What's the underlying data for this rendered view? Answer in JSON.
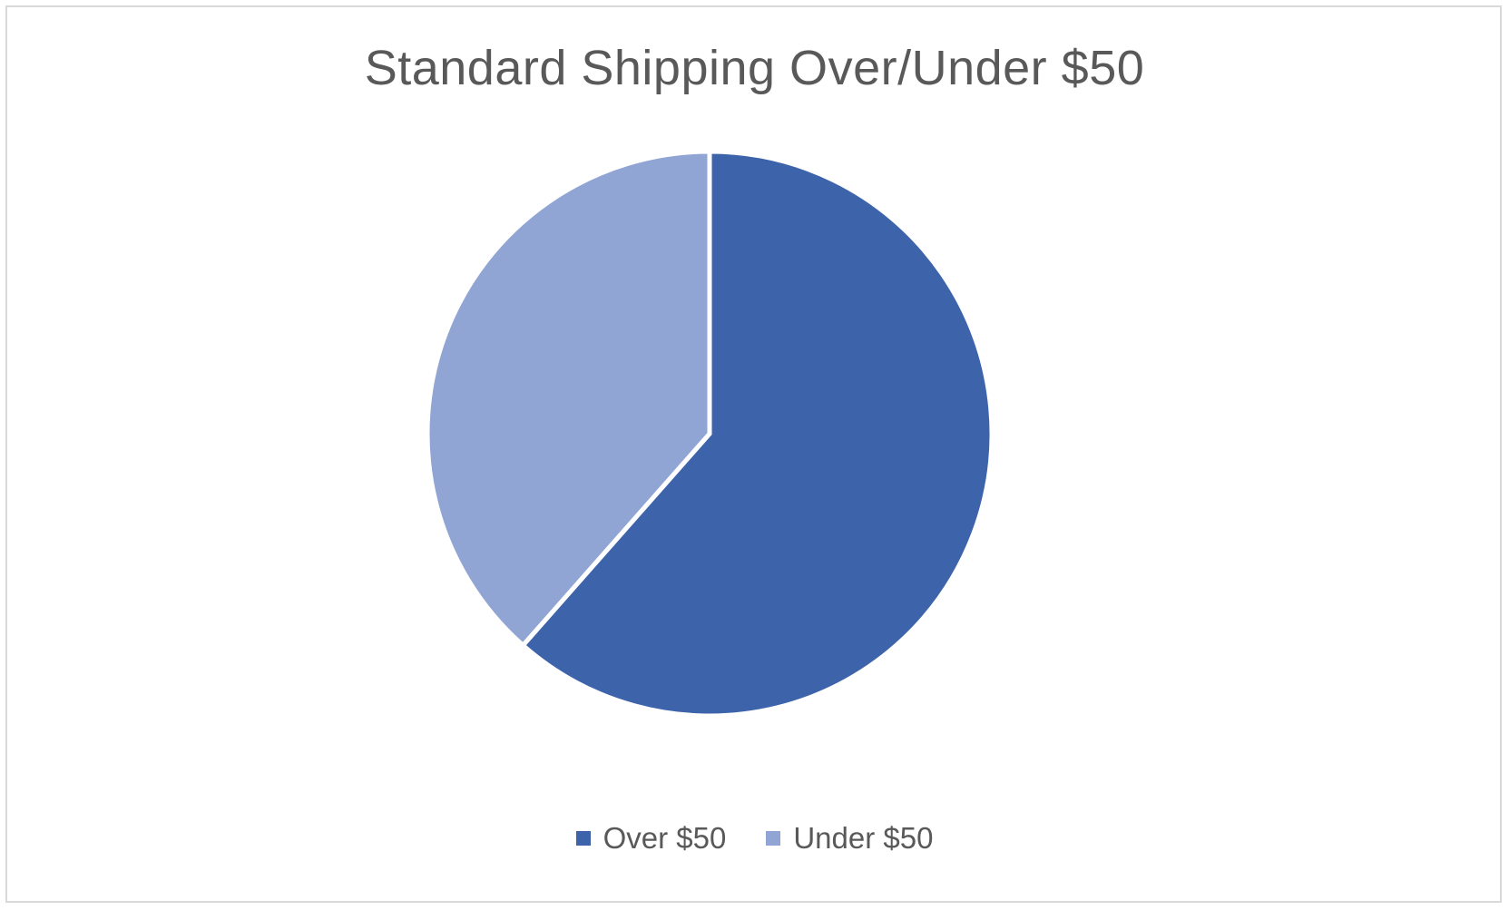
{
  "chart_data": {
    "type": "pie",
    "title": "Standard Shipping Over/Under $50",
    "categories": [
      "Over $50",
      "Under $50"
    ],
    "values": [
      61.5,
      38.5
    ],
    "colors": [
      "#3d64ab",
      "#90a5d4"
    ],
    "start_angle_deg": 0,
    "direction": "clockwise",
    "legend_position": "bottom"
  }
}
